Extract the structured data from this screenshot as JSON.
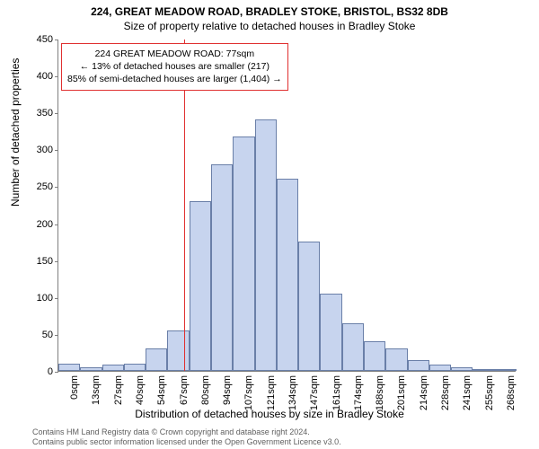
{
  "title_line1": "224, GREAT MEADOW ROAD, BRADLEY STOKE, BRISTOL, BS32 8DB",
  "title_line2": "Size of property relative to detached houses in Bradley Stoke",
  "ylabel": "Number of detached properties",
  "xlabel": "Distribution of detached houses by size in Bradley Stoke",
  "chart": {
    "type": "histogram",
    "ylim": [
      0,
      450
    ],
    "ytick_step": 50,
    "yticks": [
      0,
      50,
      100,
      150,
      200,
      250,
      300,
      350,
      400,
      450
    ],
    "categories": [
      "0sqm",
      "13sqm",
      "27sqm",
      "40sqm",
      "54sqm",
      "67sqm",
      "80sqm",
      "94sqm",
      "107sqm",
      "121sqm",
      "134sqm",
      "147sqm",
      "161sqm",
      "174sqm",
      "188sqm",
      "201sqm",
      "214sqm",
      "228sqm",
      "241sqm",
      "255sqm",
      "268sqm"
    ],
    "values": [
      10,
      5,
      8,
      10,
      30,
      55,
      230,
      280,
      318,
      340,
      260,
      175,
      105,
      65,
      40,
      30,
      15,
      8,
      5,
      3,
      2
    ],
    "bar_fill": "#c7d4ee",
    "bar_border": "#6a7fa8",
    "axis_color": "#808080",
    "background": "#ffffff",
    "marker": {
      "x_position_sqm": 77,
      "line_color": "#e03030"
    }
  },
  "info_box": {
    "line1": "224 GREAT MEADOW ROAD: 77sqm",
    "line2": "← 13% of detached houses are smaller (217)",
    "line3": "85% of semi-detached houses are larger (1,404) →",
    "border_color": "#e03030"
  },
  "footer_line1": "Contains HM Land Registry data © Crown copyright and database right 2024.",
  "footer_line2": "Contains public sector information licensed under the Open Government Licence v3.0."
}
